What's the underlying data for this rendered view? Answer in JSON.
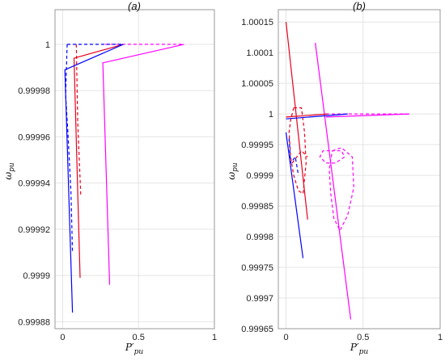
{
  "chart_data": [
    {
      "type": "line",
      "title": "(a)",
      "xlabel": "P′pu",
      "ylabel": "ωpu",
      "xlim": [
        -0.05,
        1.0
      ],
      "ylim": [
        0.999877,
        1.000015
      ],
      "xticks": [
        0,
        0.5,
        1
      ],
      "xtick_labels": [
        "0",
        "0.5",
        "1"
      ],
      "yticks": [
        0.99988,
        0.9999,
        0.99992,
        0.99994,
        0.99996,
        0.99998,
        1
      ],
      "ytick_labels": [
        "0.99988",
        "0.9999",
        "0.99992",
        "0.99994",
        "0.99996",
        "0.99998",
        "1"
      ],
      "grid": true,
      "series": [
        {
          "color": "#ff00ff",
          "style": "solid",
          "x": [
            0.31,
            0.265,
            0.8
          ],
          "y": [
            0.999896,
            0.999992,
            1.0
          ]
        },
        {
          "color": "#ff00ff",
          "style": "dashed",
          "x": [
            0.28,
            0.8
          ],
          "y": [
            1.0,
            1.0
          ]
        },
        {
          "color": "#e8001c",
          "style": "solid",
          "x": [
            0.115,
            0.075,
            0.4
          ],
          "y": [
            0.999899,
            0.999994,
            1.0
          ]
        },
        {
          "color": "#e8001c",
          "style": "dashed",
          "x": [
            0.09,
            0.1,
            0.12
          ],
          "y": [
            1.0,
            0.999966,
            0.999934
          ]
        },
        {
          "color": "#0000ff",
          "style": "solid",
          "x": [
            0.065,
            0.015,
            0.4
          ],
          "y": [
            0.999884,
            0.999989,
            1.0
          ]
        },
        {
          "color": "#0000ff",
          "style": "dashed",
          "x": [
            0.03,
            0.02,
            0.035,
            0.055,
            0.065
          ],
          "y": [
            1.0,
            0.999978,
            0.999962,
            0.999936,
            0.99991
          ]
        },
        {
          "color": "#0000ff",
          "style": "dashed",
          "x": [
            0.03,
            0.4
          ],
          "y": [
            1.0,
            1.0
          ]
        }
      ]
    },
    {
      "type": "line",
      "title": "(b)",
      "xlabel": "P′pu",
      "ylabel": "ωpu",
      "xlim": [
        -0.05,
        1.0
      ],
      "ylim": [
        0.99965,
        1.00017
      ],
      "xticks": [
        0,
        0.5,
        1
      ],
      "xtick_labels": [
        "0",
        "0.5",
        "1"
      ],
      "yticks": [
        0.99965,
        0.9997,
        0.99975,
        0.9998,
        0.99985,
        0.9999,
        0.99995,
        1,
        1.00005,
        1.0001,
        1.00015
      ],
      "ytick_labels": [
        "0.99965",
        "0.9997",
        "0.99975",
        "0.9998",
        "0.99985",
        "0.9999",
        "0.99995",
        "1",
        "1.00005",
        "1.0001",
        "1.00015"
      ],
      "grid": true,
      "series": [
        {
          "color": "#ff00ff",
          "style": "solid",
          "x": [
            0.19,
            0.42
          ],
          "y": [
            1.000116,
            0.999665
          ]
        },
        {
          "color": "#ff00ff",
          "style": "solid",
          "x": [
            0.26,
            0.8
          ],
          "y": [
            0.999995,
            1.0
          ]
        },
        {
          "color": "#ff00ff",
          "style": "dashed",
          "x": [
            0.26,
            0.8
          ],
          "y": [
            1.0,
            1.0
          ]
        },
        {
          "color": "#ff00ff",
          "style": "dashed",
          "x": [
            0.3,
            0.36,
            0.43,
            0.44,
            0.4,
            0.35,
            0.31,
            0.29,
            0.28,
            0.3,
            0.36,
            0.38,
            0.32,
            0.26,
            0.22,
            0.24,
            0.3
          ],
          "y": [
            0.99994,
            0.999945,
            0.99993,
            0.99988,
            0.999835,
            0.99981,
            0.99983,
            0.99987,
            0.99991,
            0.99994,
            0.99994,
            0.99993,
            0.99992,
            0.99992,
            0.99993,
            0.99994,
            0.99994
          ]
        },
        {
          "color": "#e8001c",
          "style": "solid",
          "x": [
            0.0,
            0.14
          ],
          "y": [
            1.00015,
            0.999828
          ]
        },
        {
          "color": "#e8001c",
          "style": "solid",
          "x": [
            0.0,
            0.27
          ],
          "y": [
            0.999995,
            1.0
          ]
        },
        {
          "color": "#e8001c",
          "style": "dashed",
          "x": [
            0.05,
            0.1,
            0.12,
            0.13,
            0.11,
            0.08,
            0.05,
            0.03,
            0.02,
            0.03,
            0.05
          ],
          "y": [
            1.00001,
            1.00001,
            0.99997,
            0.99992,
            0.99987,
            0.999875,
            0.9999,
            0.99993,
            0.99997,
            0.99999,
            1.00001
          ]
        },
        {
          "color": "#e8001c",
          "style": "dashed",
          "x": [
            0.04,
            0.1,
            0.14
          ],
          "y": [
            0.99992,
            0.99994,
            0.99993
          ]
        },
        {
          "color": "#0000ff",
          "style": "solid",
          "x": [
            0.0,
            0.11
          ],
          "y": [
            0.99997,
            0.999765
          ]
        },
        {
          "color": "#0000ff",
          "style": "solid",
          "x": [
            0.0,
            0.4
          ],
          "y": [
            0.999992,
            1.0
          ]
        },
        {
          "color": "#0000ff",
          "style": "dashed",
          "x": [
            0.02,
            0.03,
            0.06,
            0.08
          ],
          "y": [
            0.99996,
            0.99992,
            0.99993,
            0.9999
          ]
        }
      ]
    }
  ]
}
